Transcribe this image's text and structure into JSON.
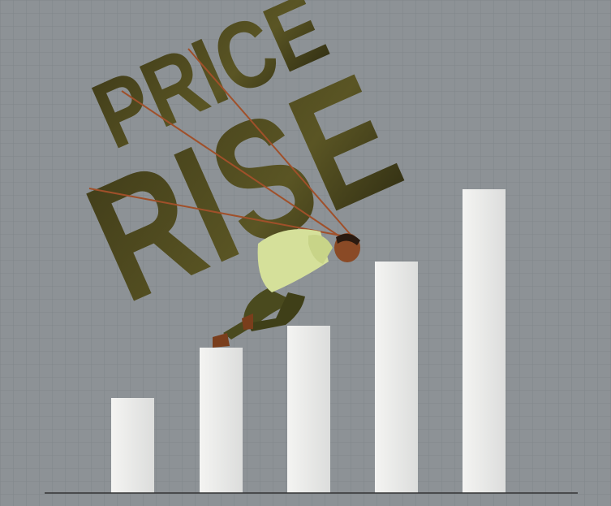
{
  "illustration": {
    "headline": [
      "PRICE",
      "RISE"
    ]
  }
}
